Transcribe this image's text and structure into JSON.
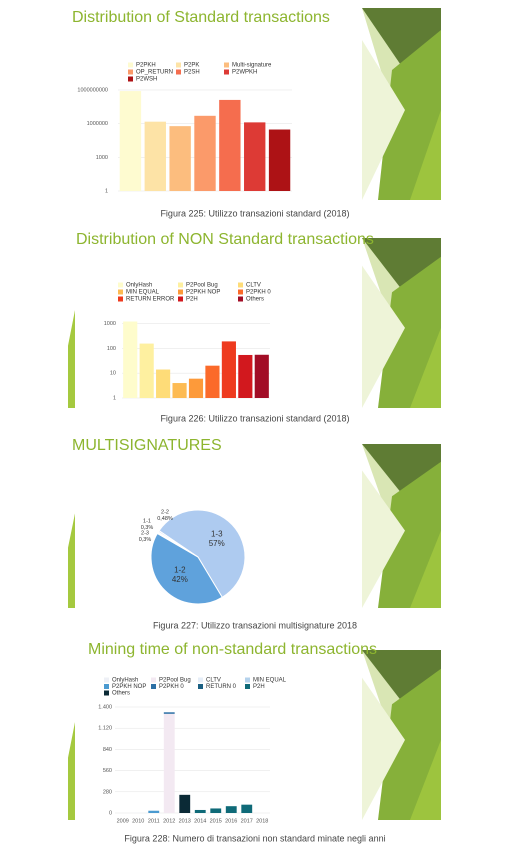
{
  "chart_data": [
    {
      "type": "bar",
      "title": "Distribution of Standard transactions",
      "caption": "Figura 225: Utilizzo transazioni standard (2018)",
      "categories": [
        "P2PKH",
        "P2PK",
        "Multi-signature",
        "OP_RETURN",
        "P2SH",
        "P2WPKH",
        "P2WSH"
      ],
      "values": [
        800000000,
        1500000,
        600000,
        5000000,
        130000000,
        1300000,
        300000
      ],
      "colors": [
        "#fefbd0",
        "#fde3a6",
        "#fcbd7e",
        "#fb9a6a",
        "#f56d4e",
        "#dd3a35",
        "#ad1215"
      ],
      "log_scale": true,
      "ylim": [
        1,
        1500000000
      ],
      "yticks": [
        1,
        1000,
        1000000,
        1000000000
      ],
      "grid": true
    },
    {
      "type": "bar",
      "title": "Distribution of NON Standard transactions",
      "caption": "Figura 226: Utilizzo transazioni standard (2018)",
      "categories": [
        "OnlyHash",
        "P2Pool Bug",
        "CLTV",
        "MIN EQUAL",
        "P2PKH NOP",
        "P2PKH 0",
        "RETURN ERROR",
        "P2H",
        "Others"
      ],
      "values": [
        1200,
        155,
        14,
        4,
        6,
        20,
        190,
        54,
        55
      ],
      "colors": [
        "#fefccc",
        "#fef0a0",
        "#fedc78",
        "#fdbb53",
        "#fd9a3a",
        "#fb6a2a",
        "#ee3a1e",
        "#d2181e",
        "#a20d26"
      ],
      "log_scale": true,
      "ylim": [
        1,
        2000
      ],
      "yticks": [
        1,
        10,
        100,
        1000
      ],
      "grid": true
    },
    {
      "type": "pie",
      "title": "MULTISIGNATURES",
      "caption": "Figura 227: Utilizzo transazioni multisignature 2018",
      "categories": [
        "1-3",
        "1-2",
        "2-3",
        "1-1",
        "2-2"
      ],
      "values": [
        57,
        42,
        0.3,
        0.3,
        0.48
      ],
      "value_labels": [
        "57%",
        "42%",
        "0,3%",
        "0,3%",
        "0,48%"
      ],
      "colors": [
        "#aecbf0",
        "#5fa2dc",
        "#3d7fc0",
        "#8fb6e3",
        "#cfdff3"
      ]
    },
    {
      "type": "stacked_bar",
      "title": "Mining time of non-standard transactions",
      "caption": "Figura 228: Numero di transazioni non standard minate negli anni",
      "categories": [
        "2009",
        "2010",
        "2011",
        "2012",
        "2013",
        "2014",
        "2015",
        "2016",
        "2017",
        "2018"
      ],
      "series": [
        {
          "name": "OnlyHash",
          "color": "#eef0f6",
          "values": [
            0,
            5,
            0,
            0,
            0,
            0,
            0,
            0,
            0,
            0
          ]
        },
        {
          "name": "P2Pool Bug",
          "color": "#f3e9f2",
          "values": [
            0,
            0,
            0,
            1310,
            0,
            0,
            0,
            0,
            0,
            0
          ]
        },
        {
          "name": "CLTV",
          "color": "#e6eef8",
          "values": [
            0,
            0,
            0,
            0,
            0,
            0,
            0,
            0,
            0,
            0
          ]
        },
        {
          "name": "MIN EQUAL",
          "color": "#b4d2ec",
          "values": [
            0,
            0,
            0,
            0,
            0,
            0,
            0,
            0,
            0,
            0
          ]
        },
        {
          "name": "P2PKH NOP",
          "color": "#4a9ad0",
          "values": [
            0,
            0,
            30,
            0,
            0,
            0,
            0,
            0,
            0,
            0
          ]
        },
        {
          "name": "P2PKH 0",
          "color": "#2c6fa5",
          "values": [
            0,
            0,
            0,
            20,
            0,
            0,
            0,
            0,
            0,
            0
          ]
        },
        {
          "name": "RETURN 0",
          "color": "#1a5f82",
          "values": [
            0,
            0,
            0,
            0,
            0,
            0,
            0,
            0,
            0,
            0
          ]
        },
        {
          "name": "P2H",
          "color": "#0f6a78",
          "values": [
            0,
            0,
            0,
            0,
            0,
            40,
            60,
            90,
            110,
            0
          ]
        },
        {
          "name": "Others",
          "color": "#0b2a36",
          "values": [
            0,
            0,
            0,
            0,
            240,
            0,
            0,
            0,
            0,
            0
          ]
        }
      ],
      "ylim": [
        0,
        1400
      ],
      "yticks": [
        0,
        280,
        560,
        840,
        {
          "value": 1120,
          "label": "1.120"
        },
        {
          "value": 1400,
          "label": "1.400"
        }
      ],
      "grid": true
    }
  ]
}
